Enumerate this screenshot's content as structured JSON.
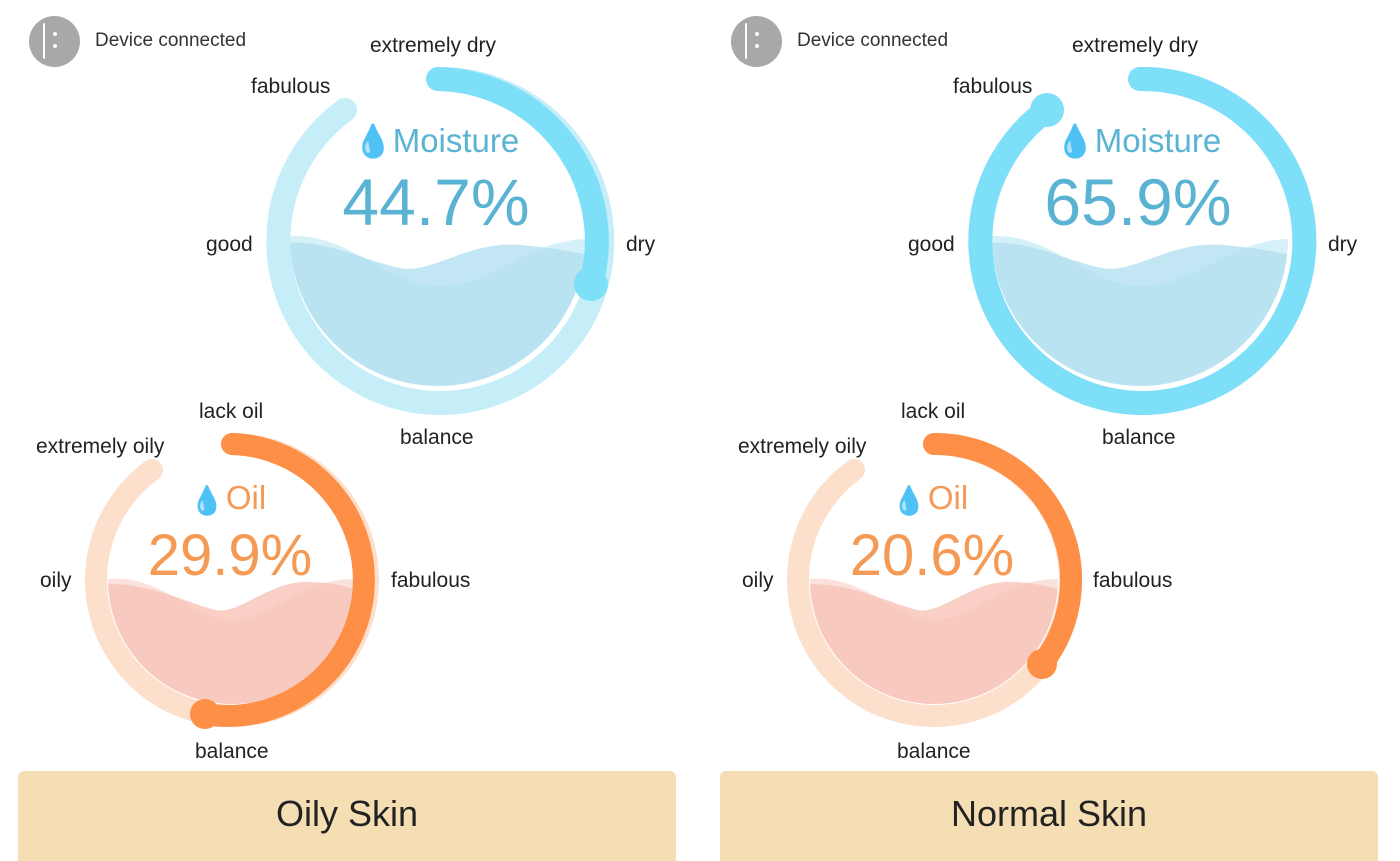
{
  "colors": {
    "moisture_track": "#c6eef9",
    "moisture_arc": "#7edff8",
    "moisture_fill": "#b8e3f2",
    "moisture_text": "#5ab3d2",
    "oil_track": "#fde0cc",
    "oil_arc": "#fd8f47",
    "oil_fill": "#f8c8be",
    "oil_text": "#f59a55",
    "skin_bar": "#f5deb3"
  },
  "panels": [
    {
      "device_status": "Device connected",
      "moisture": {
        "title": "Moisture",
        "value_text": "44.7%",
        "labels": {
          "top": "extremely dry",
          "top_left": "fabulous",
          "left": "good",
          "right": "dry",
          "bottom": "balance"
        },
        "icon": "water-drop-icon"
      },
      "oil": {
        "title": "Oil",
        "value_text": "29.9%",
        "labels": {
          "top": "lack oil",
          "top_left": "extremely oily",
          "left": "oily",
          "right": "fabulous",
          "bottom": "balance"
        },
        "icon": "water-drop-icon"
      },
      "skin_type": "Oily Skin"
    },
    {
      "device_status": "Device connected",
      "moisture": {
        "title": "Moisture",
        "value_text": "65.9%",
        "labels": {
          "top": "extremely dry",
          "top_left": "fabulous",
          "left": "good",
          "right": "dry",
          "bottom": "balance"
        },
        "icon": "water-drop-icon"
      },
      "oil": {
        "title": "Oil",
        "value_text": "20.6%",
        "labels": {
          "top": "lack oil",
          "top_left": "extremely oily",
          "left": "oily",
          "right": "fabulous",
          "bottom": "balance"
        },
        "icon": "water-drop-icon"
      },
      "skin_type": "Normal Skin"
    }
  ]
}
